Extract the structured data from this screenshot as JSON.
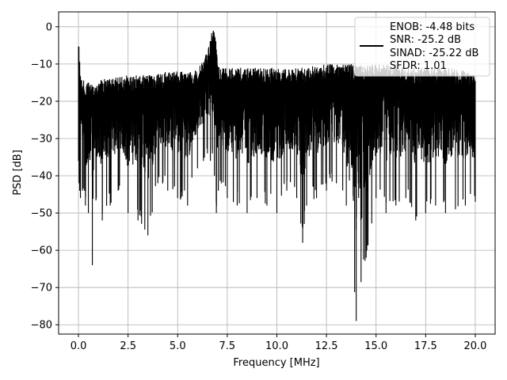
{
  "chart_data": {
    "type": "line",
    "xlabel": "Frequency [MHz]",
    "ylabel": "PSD [dB]",
    "xlim": [
      -1.0,
      21.0
    ],
    "ylim": [
      -82.5,
      4.0
    ],
    "xticks": [
      0.0,
      2.5,
      5.0,
      7.5,
      10.0,
      12.5,
      15.0,
      17.5,
      20.0
    ],
    "xtick_labels": [
      "0.0",
      "2.5",
      "5.0",
      "7.5",
      "10.0",
      "12.5",
      "15.0",
      "17.5",
      "20.0"
    ],
    "yticks": [
      0,
      -10,
      -20,
      -30,
      -40,
      -50,
      -60,
      -70,
      -80
    ],
    "ytick_labels": [
      "0",
      "−10",
      "−20",
      "−30",
      "−40",
      "−50",
      "−60",
      "−70",
      "−80"
    ],
    "grid": true,
    "legend_position": "top-right",
    "legend_lines": [
      "ENOB: -4.48 bits",
      "SNR: -25.2 dB",
      "SINAD: -25.22 dB",
      "SFDR: 1.01"
    ],
    "series": [
      {
        "color": "#000000",
        "x": [
          0.0,
          0.03,
          0.06,
          0.1,
          0.2,
          0.35,
          0.5,
          0.7,
          0.9,
          1.2,
          1.6,
          2.0,
          2.5,
          3.0,
          3.5,
          4.0,
          4.5,
          5.0,
          5.5,
          6.0,
          6.3,
          6.5,
          6.65,
          6.75,
          6.85,
          6.95,
          7.05,
          7.2,
          7.5,
          8.0,
          8.5,
          9.0,
          9.5,
          10.0,
          10.5,
          11.0,
          11.3,
          11.5,
          12.0,
          12.5,
          13.0,
          13.5,
          14.0,
          14.5,
          15.0,
          15.5,
          16.0,
          16.5,
          17.0,
          17.5,
          18.0,
          18.5,
          19.0,
          19.5,
          20.0
        ],
        "upper": [
          -2,
          -5,
          -8,
          -12,
          -14,
          -15,
          -15,
          -15,
          -14.5,
          -14,
          -14,
          -13.5,
          -13,
          -13,
          -13,
          -12.5,
          -12,
          -12,
          -12,
          -11.5,
          -9,
          -6,
          -3,
          0,
          -1.5,
          -4,
          -10,
          -11,
          -11,
          -11,
          -11,
          -11,
          -11,
          -11,
          -11,
          -11,
          -11,
          -10.5,
          -10.5,
          -10,
          -10,
          -10,
          -10,
          -10,
          -10,
          -10,
          -10.5,
          -11,
          -11,
          -11,
          -11,
          -11,
          -11,
          -12,
          -13
        ],
        "lower": [
          -36,
          -42,
          -44,
          -46,
          -44,
          -48,
          -50,
          -64,
          -46,
          -52,
          -48,
          -44,
          -50,
          -52,
          -56,
          -42,
          -44,
          -46,
          -48,
          -38,
          -36,
          -34,
          -36,
          -34,
          -40,
          -50,
          -44,
          -42,
          -46,
          -48,
          -50,
          -46,
          -48,
          -50,
          -44,
          -46,
          -58,
          -48,
          -46,
          -44,
          -42,
          -48,
          -79,
          -62,
          -46,
          -50,
          -48,
          -46,
          -52,
          -50,
          -48,
          -50,
          -49,
          -48,
          -47
        ]
      }
    ]
  }
}
